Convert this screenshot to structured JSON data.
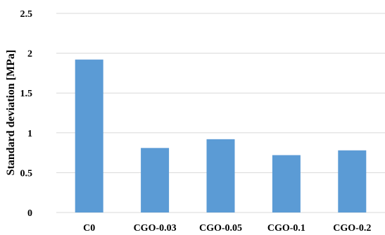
{
  "chart_data": {
    "type": "bar",
    "title": "",
    "xlabel": "",
    "ylabel": "Standard deviation [MPa]",
    "categories": [
      "C0",
      "CGO-0.03",
      "CGO-0.05",
      "CGO-0.1",
      "CGO-0.2"
    ],
    "values": [
      1.92,
      0.81,
      0.92,
      0.72,
      0.78
    ],
    "ylim": [
      0,
      2.5
    ],
    "yticks": [
      "0",
      "0.5",
      "1",
      "1.5",
      "2",
      "2.5"
    ],
    "grid": "horizontal",
    "legend": "none",
    "bar_color": "#5b9bd5",
    "grid_color": "#d9d9d9"
  }
}
